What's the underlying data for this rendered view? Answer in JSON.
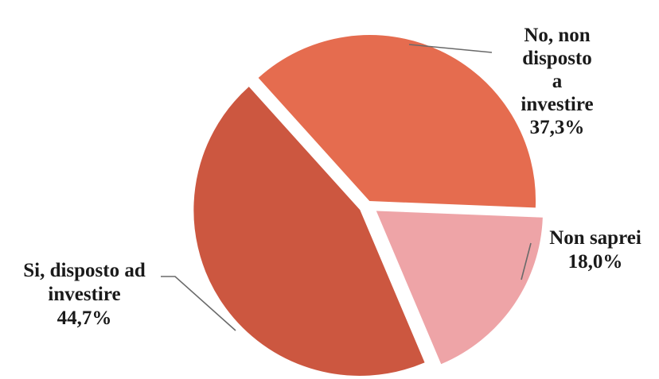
{
  "chart_data": {
    "type": "pie",
    "slices": [
      {
        "name": "No, non disposto a investire",
        "label_lines": [
          "No, non",
          "disposto",
          "a",
          "investire"
        ],
        "value": 37.3,
        "value_label": "37,3%",
        "color": "#e56c4f"
      },
      {
        "name": "Non saprei",
        "label_lines": [
          "Non saprei"
        ],
        "value": 18.0,
        "value_label": "18,0%",
        "color": "#eea4a7"
      },
      {
        "name": "Si, disposto ad investire",
        "label_lines": [
          "Si, disposto ad",
          "investire"
        ],
        "value": 44.7,
        "value_label": "44,7%",
        "color": "#cc5740"
      }
    ],
    "title": "",
    "legend": "none",
    "exploded": true
  }
}
